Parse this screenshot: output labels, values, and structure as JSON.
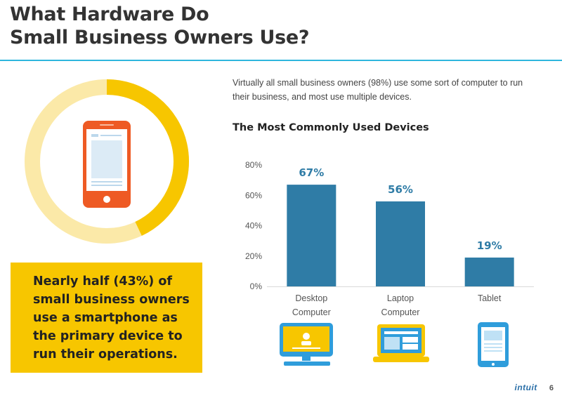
{
  "header": {
    "title_line1": "What Hardware Do",
    "title_line2": "Small Business Owners Use?"
  },
  "intro": {
    "text": "Virtually all small business owners (98%) use some sort of computer to run their business, and most use multiple devices."
  },
  "callout": {
    "text": "Nearly half (43%) of small business owners use a smartphone as the primary device to run their operations."
  },
  "donut": {
    "value_percent": 43,
    "color_fill": "#f7c600",
    "color_rest": "#fbe9a8",
    "icon": "smartphone-icon"
  },
  "chart_data": {
    "type": "bar",
    "title": "The Most Commonly Used Devices",
    "categories": [
      "Desktop Computer",
      "Laptop Computer",
      "Tablet"
    ],
    "category_lines": [
      [
        "Desktop",
        "Computer"
      ],
      [
        "Laptop",
        "Computer"
      ],
      [
        "Tablet"
      ]
    ],
    "values": [
      67,
      56,
      19
    ],
    "data_labels": [
      "67%",
      "56%",
      "19%"
    ],
    "yticks": [
      "0%",
      "20%",
      "40%",
      "60%",
      "80%"
    ],
    "ylim": [
      0,
      80
    ],
    "xlabel": "",
    "ylabel": "",
    "grid": false,
    "bar_color": "#2f7ca6",
    "label_color": "#2f7ca6",
    "icons": [
      "desktop-computer-icon",
      "laptop-computer-icon",
      "tablet-icon"
    ]
  },
  "footer": {
    "brand": "intuit",
    "page": "6"
  }
}
